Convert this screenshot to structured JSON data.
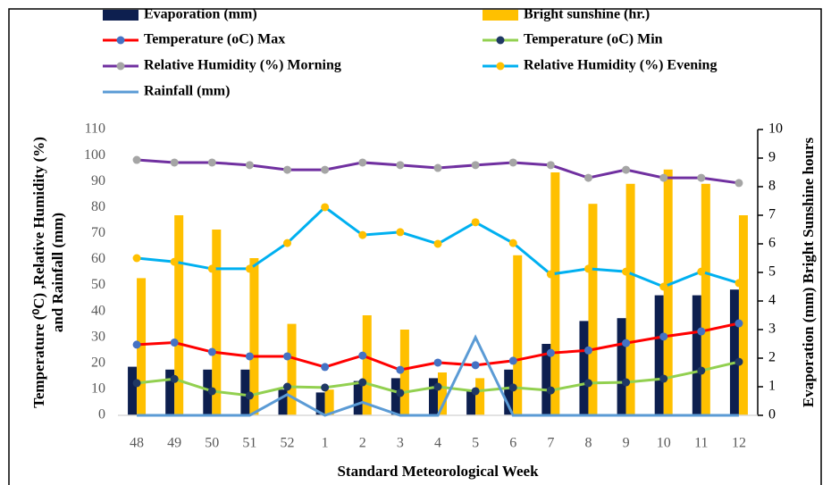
{
  "chart_data": {
    "type": "combo",
    "categories": [
      "48",
      "49",
      "50",
      "51",
      "52",
      "1",
      "2",
      "3",
      "4",
      "5",
      "6",
      "7",
      "8",
      "9",
      "10",
      "11",
      "12"
    ],
    "x_label": "Standard Meteorological Week",
    "y_label": [
      "Temperature (⁰C) ,Relative Humidity (%)",
      "and Rainfall (mm)"
    ],
    "y2_label": "Evaporation (mm) Bright Sunshine hours",
    "ylim": [
      0,
      110
    ],
    "yticks": [
      0,
      10,
      20,
      30,
      40,
      50,
      60,
      70,
      80,
      90,
      100,
      110
    ],
    "y2lim": [
      0,
      10
    ],
    "y2ticks": [
      0,
      1,
      2,
      3,
      4,
      5,
      6,
      7,
      8,
      9,
      10
    ],
    "series": [
      {
        "name": "Evaporation (mm)",
        "kind": "bar",
        "axis": "y2",
        "color": "#0d1f4f",
        "values": [
          1.7,
          1.6,
          1.6,
          1.6,
          0.9,
          0.8,
          1.2,
          1.3,
          1.3,
          0.9,
          1.6,
          2.5,
          3.3,
          3.4,
          4.2,
          4.2,
          4.4
        ]
      },
      {
        "name": "Bright sunshine (hr.)",
        "kind": "bar",
        "axis": "y2",
        "color": "#ffc000",
        "values": [
          4.8,
          7.0,
          6.5,
          5.5,
          3.2,
          0.9,
          3.5,
          3.0,
          1.5,
          1.3,
          5.6,
          8.5,
          7.4,
          8.1,
          8.6,
          8.1,
          7.0
        ]
      },
      {
        "name": "Temperature (oC) Max",
        "kind": "line",
        "color": "#ff0000",
        "marker_color": "#4472c4",
        "values": [
          27.2,
          28,
          24.4,
          22.7,
          22.7,
          18.6,
          23,
          17.5,
          20.3,
          19.3,
          21,
          24,
          25,
          27.8,
          30.3,
          32.3,
          35.4
        ]
      },
      {
        "name": "Temperature (oC) Min",
        "kind": "line",
        "color": "#92d050",
        "marker_color": "#1f3864",
        "values": [
          12.4,
          14,
          9.3,
          7.6,
          11,
          10.7,
          12.7,
          8.6,
          11,
          9.3,
          10.7,
          9.6,
          12.4,
          12.7,
          14.1,
          17.2,
          20.6
        ]
      },
      {
        "name": "Relative Humidity (%) Morning",
        "kind": "line",
        "color": "#7030a0",
        "marker_color": "#a5a5a5",
        "values": [
          98.3,
          97.3,
          97.3,
          96.3,
          94.5,
          94.5,
          97.3,
          96.3,
          95.2,
          96.3,
          97.3,
          96.3,
          91.4,
          94.5,
          91.4,
          91.4,
          89.4
        ]
      },
      {
        "name": "Relative Humidity (%) Evening",
        "kind": "line",
        "color": "#00b0f0",
        "marker_color": "#ffc000",
        "values": [
          60.5,
          59.1,
          56.4,
          56.4,
          66.3,
          80.1,
          69.4,
          70.5,
          66,
          74.3,
          66.3,
          54.3,
          56.4,
          55.3,
          49.5,
          55.3,
          50.9
        ]
      },
      {
        "name": "Rainfall (mm)",
        "kind": "line",
        "color": "#5b9bd5",
        "values": [
          0,
          0,
          0,
          0,
          8,
          0,
          5,
          0,
          0,
          30,
          0,
          0,
          0,
          0,
          0,
          0,
          0
        ]
      }
    ]
  }
}
